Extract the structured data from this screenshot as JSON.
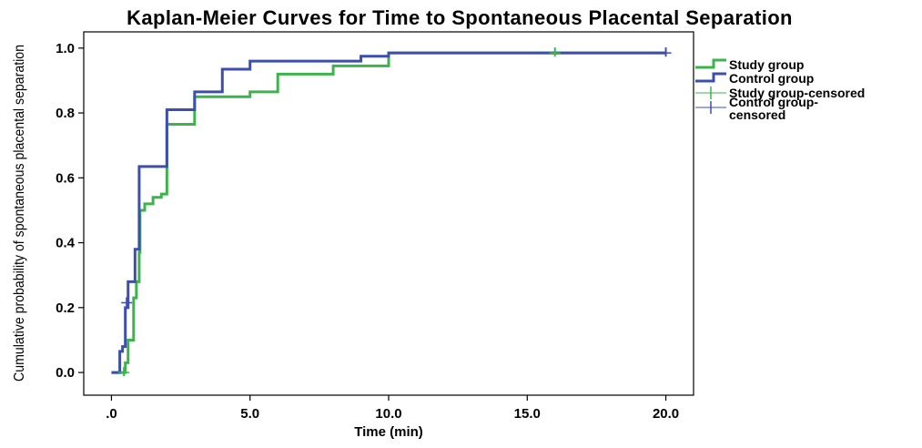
{
  "chart_data": {
    "type": "line",
    "subtype": "kaplan-meier-step",
    "title": "Kaplan-Meier Curves for Time to Spontaneous Placental Separation",
    "xlabel": "Time (min)",
    "ylabel": "Cumulative probability of spontaneous placental separation",
    "xlim": [
      -1,
      21
    ],
    "ylim": [
      -0.07,
      1.05
    ],
    "x_ticks": [
      0,
      5,
      10,
      15,
      20
    ],
    "x_tick_labels": [
      ".0",
      "5.0",
      "10.0",
      "15.0",
      "20.0"
    ],
    "y_ticks": [
      0,
      0.2,
      0.4,
      0.6,
      0.8,
      1.0
    ],
    "y_tick_labels": [
      "0.0",
      "0.2",
      "0.4",
      "0.6",
      "0.8",
      "1.0"
    ],
    "grid": false,
    "legend_position": "right",
    "series": [
      {
        "name": "Study group",
        "color": "#3CB44B",
        "steps": [
          [
            0,
            0
          ],
          [
            0.5,
            0.03
          ],
          [
            0.6,
            0.1
          ],
          [
            0.8,
            0.23
          ],
          [
            0.9,
            0.28
          ],
          [
            1.0,
            0.37
          ],
          [
            1.03,
            0.5
          ],
          [
            1.2,
            0.52
          ],
          [
            1.5,
            0.54
          ],
          [
            1.8,
            0.55
          ],
          [
            2.0,
            0.765
          ],
          [
            3.0,
            0.85
          ],
          [
            5.0,
            0.865
          ],
          [
            6.0,
            0.92
          ],
          [
            8.0,
            0.945
          ],
          [
            10.0,
            0.985
          ],
          [
            20.0,
            0.985
          ]
        ]
      },
      {
        "name": "Control group",
        "color": "#3C4FAF",
        "steps": [
          [
            0,
            0
          ],
          [
            0.3,
            0.065
          ],
          [
            0.4,
            0.08
          ],
          [
            0.5,
            0.2
          ],
          [
            0.6,
            0.28
          ],
          [
            0.85,
            0.38
          ],
          [
            1.0,
            0.635
          ],
          [
            2.0,
            0.81
          ],
          [
            3.0,
            0.865
          ],
          [
            4.0,
            0.935
          ],
          [
            5.0,
            0.96
          ],
          [
            9.0,
            0.975
          ],
          [
            10.0,
            0.985
          ],
          [
            20.0,
            0.985
          ]
        ]
      },
      {
        "name": "Study group-censored",
        "color": "#3CB44B",
        "censored_points": [
          [
            0.45,
            0.0
          ],
          [
            16.0,
            0.985
          ]
        ]
      },
      {
        "name": "Control group-censored",
        "color": "#3C4FAF",
        "censored_points": [
          [
            0.55,
            0.215
          ],
          [
            20.0,
            0.985
          ]
        ]
      }
    ]
  }
}
